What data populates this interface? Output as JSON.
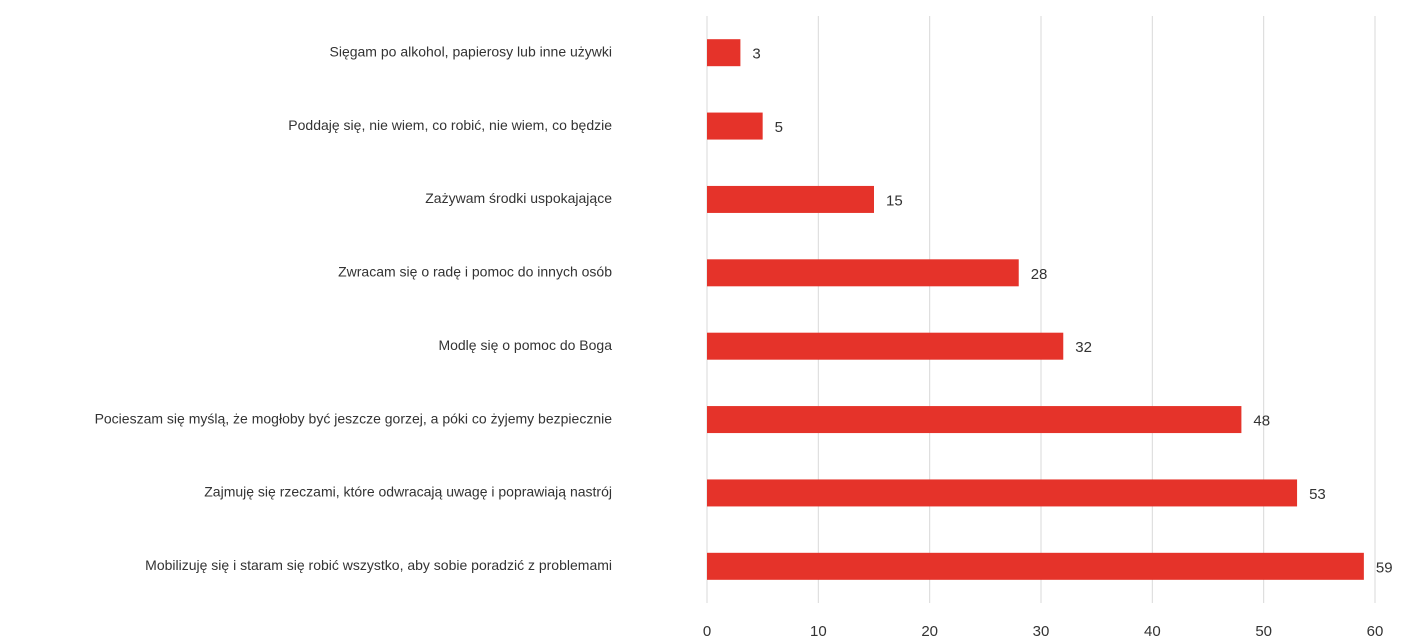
{
  "chart_data": {
    "type": "barh",
    "categories": [
      "Sięgam po alkohol, papierosy lub inne używki",
      "Poddaję się, nie wiem, co robić, nie wiem, co będzie",
      "Zażywam środki uspokajające",
      "Zwracam się o radę i pomoc do innych osób",
      "Modlę się o pomoc do Boga",
      "Pocieszam się myślą, że mogłoby być jeszcze gorzej, a póki co żyjemy bezpiecznie",
      "Zajmuję się rzeczami, które odwracają uwagę i poprawiają nastrój",
      "Mobilizuję się i staram się robić wszystko, aby sobie poradzić z problemami"
    ],
    "values": [
      3,
      5,
      15,
      28,
      32,
      48,
      53,
      59
    ],
    "color": "#e5332a",
    "xlim": [
      0,
      60
    ],
    "xticks": [
      0,
      10,
      20,
      30,
      40,
      50,
      60
    ],
    "grid": true
  }
}
